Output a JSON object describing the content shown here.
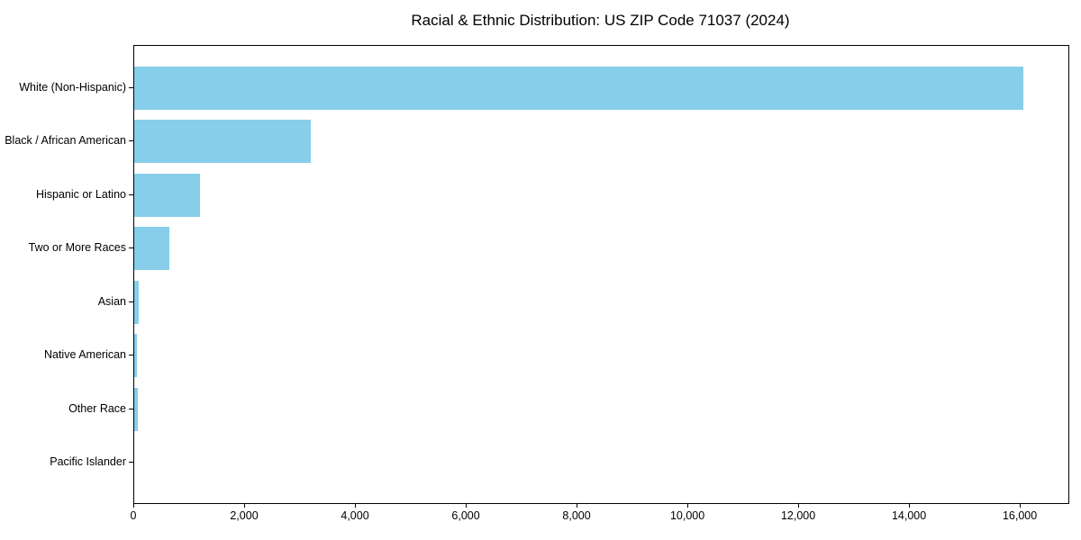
{
  "chart_data": {
    "type": "bar",
    "orientation": "horizontal",
    "title": "Racial & Ethnic Distribution: US ZIP Code 71037 (2024)",
    "categories": [
      "White (Non-Hispanic)",
      "Black / African American",
      "Hispanic or Latino",
      "Two or More Races",
      "Asian",
      "Native American",
      "Other Race",
      "Pacific Islander"
    ],
    "values": [
      16050,
      3185,
      1190,
      635,
      75,
      45,
      60,
      0
    ],
    "bar_color": "#87CEEB",
    "xlabel": "",
    "ylabel": "",
    "xlim": [
      0,
      16860
    ],
    "xticks": [
      0,
      2000,
      4000,
      6000,
      8000,
      10000,
      12000,
      14000,
      16000
    ],
    "xtick_labels": [
      "0",
      "2,000",
      "4,000",
      "6,000",
      "8,000",
      "10,000",
      "12,000",
      "14,000",
      "16,000"
    ],
    "grid": false,
    "legend": "none"
  }
}
